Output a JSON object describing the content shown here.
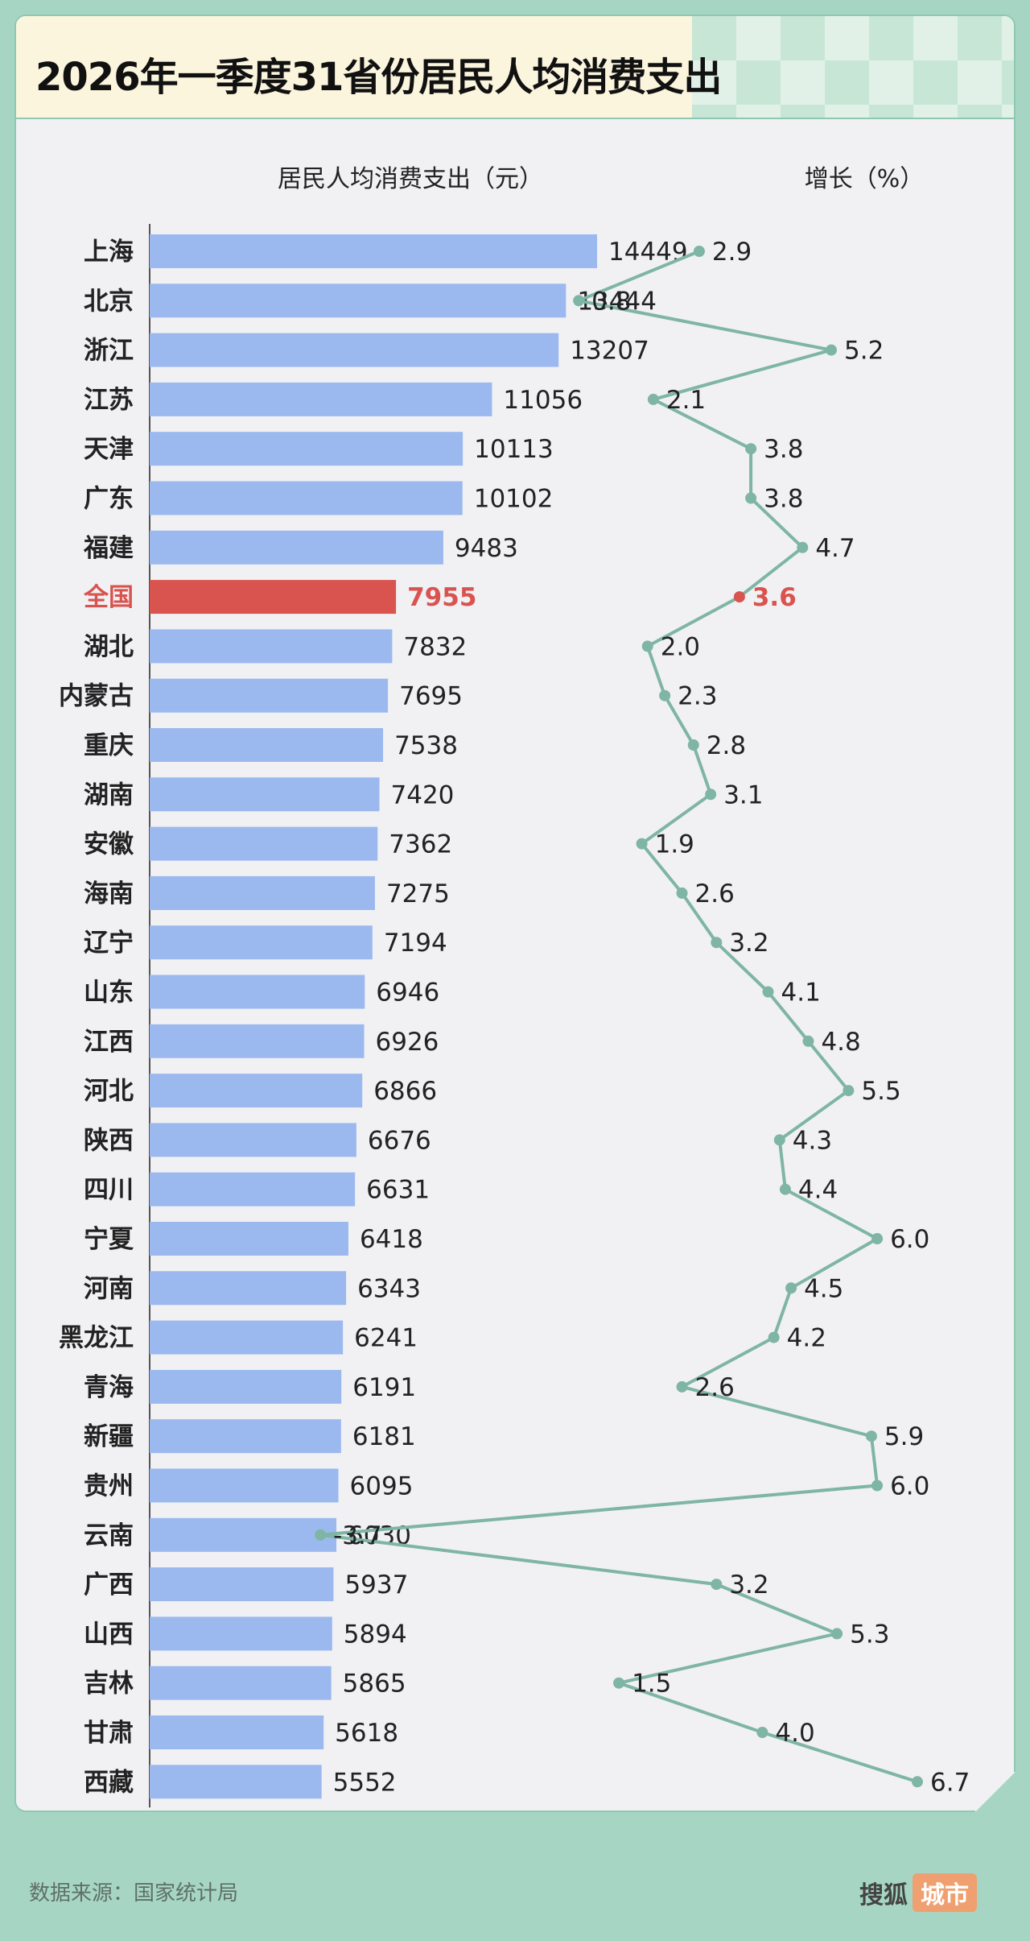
{
  "title": "2026年一季度31省份居民人均消费支出",
  "source": "数据来源：国家统计局",
  "brand": {
    "name": "搜狐",
    "tag": "城市"
  },
  "colors": {
    "bar": "#9bb9ef",
    "highlight": "#d9534f",
    "line": "#7fb5a3",
    "text": "#222222"
  },
  "chart_data": {
    "type": "bar",
    "left_panel_header": "居民人均消费支出（元）",
    "right_panel_header": "增长（%）",
    "highlight_category": "全国",
    "categories": [
      "上海",
      "北京",
      "浙江",
      "江苏",
      "天津",
      "广东",
      "福建",
      "全国",
      "湖北",
      "内蒙古",
      "重庆",
      "湖南",
      "安徽",
      "海南",
      "辽宁",
      "山东",
      "江西",
      "河北",
      "陕西",
      "四川",
      "宁夏",
      "河南",
      "黑龙江",
      "青海",
      "新疆",
      "贵州",
      "云南",
      "广西",
      "山西",
      "吉林",
      "甘肃",
      "西藏"
    ],
    "series": [
      {
        "values": [
          14449,
          13444,
          13207,
          11056,
          10113,
          10102,
          9483,
          7955,
          7832,
          7695,
          7538,
          7420,
          7362,
          7275,
          7194,
          6946,
          6926,
          6866,
          6676,
          6631,
          6418,
          6343,
          6241,
          6191,
          6181,
          6095,
          6030,
          5937,
          5894,
          5865,
          5618,
          5552
        ]
      },
      {
        "type": "line",
        "values": [
          2.9,
          0.8,
          5.2,
          2.1,
          3.8,
          3.8,
          4.7,
          3.6,
          2.0,
          2.3,
          2.8,
          3.1,
          1.9,
          2.6,
          3.2,
          4.1,
          4.8,
          5.5,
          4.3,
          4.4,
          6.0,
          4.5,
          4.2,
          2.6,
          5.9,
          6.0,
          -3.7,
          3.2,
          5.3,
          1.5,
          4.0,
          6.7
        ]
      }
    ],
    "growth_labels": [
      "2.9",
      "0.8",
      "5.2",
      "2.1",
      "3.8",
      "3.8",
      "4.7",
      "3.6",
      "2.0",
      "2.3",
      "2.8",
      "3.1",
      "1.9",
      "2.6",
      "3.2",
      "4.1",
      "4.8",
      "5.5",
      "4.3",
      "4.4",
      "6.0",
      "4.5",
      "4.2",
      "2.6",
      "5.9",
      "6.0",
      "-3.7",
      "3.2",
      "5.3",
      "1.5",
      "4.0",
      "6.7"
    ]
  }
}
